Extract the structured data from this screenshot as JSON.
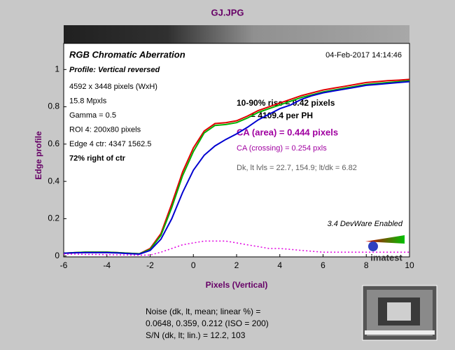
{
  "chart_data": {
    "type": "line",
    "title": "GJ.JPG",
    "chart_title": "RGB Chromatic Aberration",
    "profile": "Profile: Vertical reversed",
    "date": "04-Feb-2017 14:14:46",
    "info": [
      "4592 x 3448 pixels (WxH)",
      "15.8 Mpxls",
      "Gamma = 0.5",
      "ROI 4: 200x80 pixels",
      "Edge 4 ctr: 4347  1562.5",
      "72% right of ctr"
    ],
    "rise": [
      "10-90% rise = 0.42 pixels",
      "= 4109.4 per PH"
    ],
    "ca_area": "CA (area) = 0.444 pixels",
    "ca_crossing": "CA (crossing) = 0.254 pxls",
    "levels": "Dk, lt lvls = 22.7, 154.9;  lt/dk = 6.82",
    "devware": "3.4  DevWare Enabled",
    "logo": "imatest",
    "x_label": "Pixels (Vertical)",
    "y_label": "Edge profile",
    "noise": [
      "Noise (dk, lt, mean; linear %) =",
      "0.0648,  0.359,  0.212  (ISO =  200)",
      "S/N (dk, lt; lin.) = 12.2,  103"
    ],
    "x": [
      -6,
      -5.5,
      -5,
      -4.5,
      -4,
      -3.5,
      -3,
      -2.5,
      -2,
      -1.5,
      -1,
      -0.5,
      0,
      0.5,
      1,
      1.5,
      2,
      2.5,
      3,
      3.5,
      4,
      4.5,
      5,
      5.5,
      6,
      6.5,
      7,
      7.5,
      8,
      8.5,
      9,
      9.5,
      10
    ],
    "series": [
      {
        "color": "#e00000",
        "values": [
          0.015,
          0.018,
          0.02,
          0.02,
          0.02,
          0.018,
          0.015,
          0.012,
          0.04,
          0.12,
          0.28,
          0.45,
          0.58,
          0.67,
          0.71,
          0.715,
          0.725,
          0.75,
          0.78,
          0.8,
          0.82,
          0.84,
          0.86,
          0.875,
          0.89,
          0.9,
          0.91,
          0.92,
          0.93,
          0.935,
          0.94,
          0.943,
          0.947
        ]
      },
      {
        "color": "#00b000",
        "values": [
          0.015,
          0.018,
          0.02,
          0.02,
          0.02,
          0.018,
          0.015,
          0.012,
          0.035,
          0.11,
          0.26,
          0.43,
          0.56,
          0.66,
          0.7,
          0.705,
          0.715,
          0.74,
          0.77,
          0.79,
          0.81,
          0.83,
          0.85,
          0.865,
          0.88,
          0.89,
          0.9,
          0.91,
          0.92,
          0.925,
          0.93,
          0.935,
          0.94
        ]
      },
      {
        "color": "#0000d0",
        "values": [
          0.015,
          0.017,
          0.018,
          0.018,
          0.018,
          0.016,
          0.013,
          0.01,
          0.03,
          0.09,
          0.2,
          0.34,
          0.46,
          0.54,
          0.59,
          0.625,
          0.655,
          0.69,
          0.73,
          0.76,
          0.79,
          0.81,
          0.84,
          0.86,
          0.875,
          0.885,
          0.895,
          0.905,
          0.915,
          0.92,
          0.925,
          0.93,
          0.935
        ]
      },
      {
        "color": "#e000e0",
        "dotted": true,
        "values": [
          0.01,
          0.01,
          0.008,
          0.008,
          0.007,
          0.006,
          0.005,
          0.004,
          0.005,
          0.02,
          0.04,
          0.06,
          0.07,
          0.08,
          0.08,
          0.08,
          0.07,
          0.06,
          0.05,
          0.04,
          0.04,
          0.035,
          0.03,
          0.025,
          0.02,
          0.02,
          0.02,
          0.02,
          0.02,
          0.02,
          0.02,
          0.02,
          0.02
        ]
      }
    ],
    "xlim": [
      -6,
      10
    ],
    "ylim": [
      -0.005,
      1.14
    ],
    "xticks": [
      -6,
      -4,
      -2,
      0,
      2,
      4,
      6,
      8,
      10
    ],
    "yticks": [
      0,
      0.2,
      0.4,
      0.6,
      0.8,
      1
    ]
  }
}
